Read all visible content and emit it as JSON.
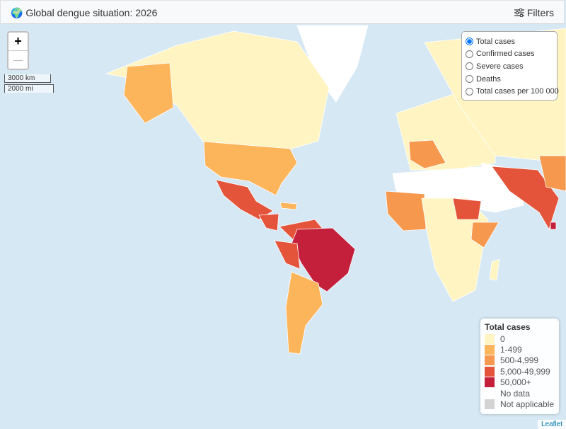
{
  "header": {
    "title": "Global dengue situation: 2026",
    "filters": "Filters"
  },
  "zoom": {
    "in": "+",
    "out": "—"
  },
  "scale": {
    "metric": "3000 km",
    "imperial": "2000 mi"
  },
  "layers": {
    "options": [
      "Total cases",
      "Confirmed cases",
      "Severe cases",
      "Deaths",
      "Total cases per 100 000"
    ],
    "selected": 0
  },
  "legend": {
    "title": "Total cases",
    "items": [
      {
        "label": "0",
        "color": "#fff4c2"
      },
      {
        "label": "1-499",
        "color": "#fdb55c"
      },
      {
        "label": "500-4,999",
        "color": "#f6994e"
      },
      {
        "label": "5,000-49,999",
        "color": "#e4543a"
      },
      {
        "label": "50,000+",
        "color": "#c4203c"
      },
      {
        "label": "No data",
        "color": "#ffffff"
      },
      {
        "label": "Not applicable",
        "color": "#d3d3d3"
      }
    ]
  },
  "attribution": "Leaflet"
}
